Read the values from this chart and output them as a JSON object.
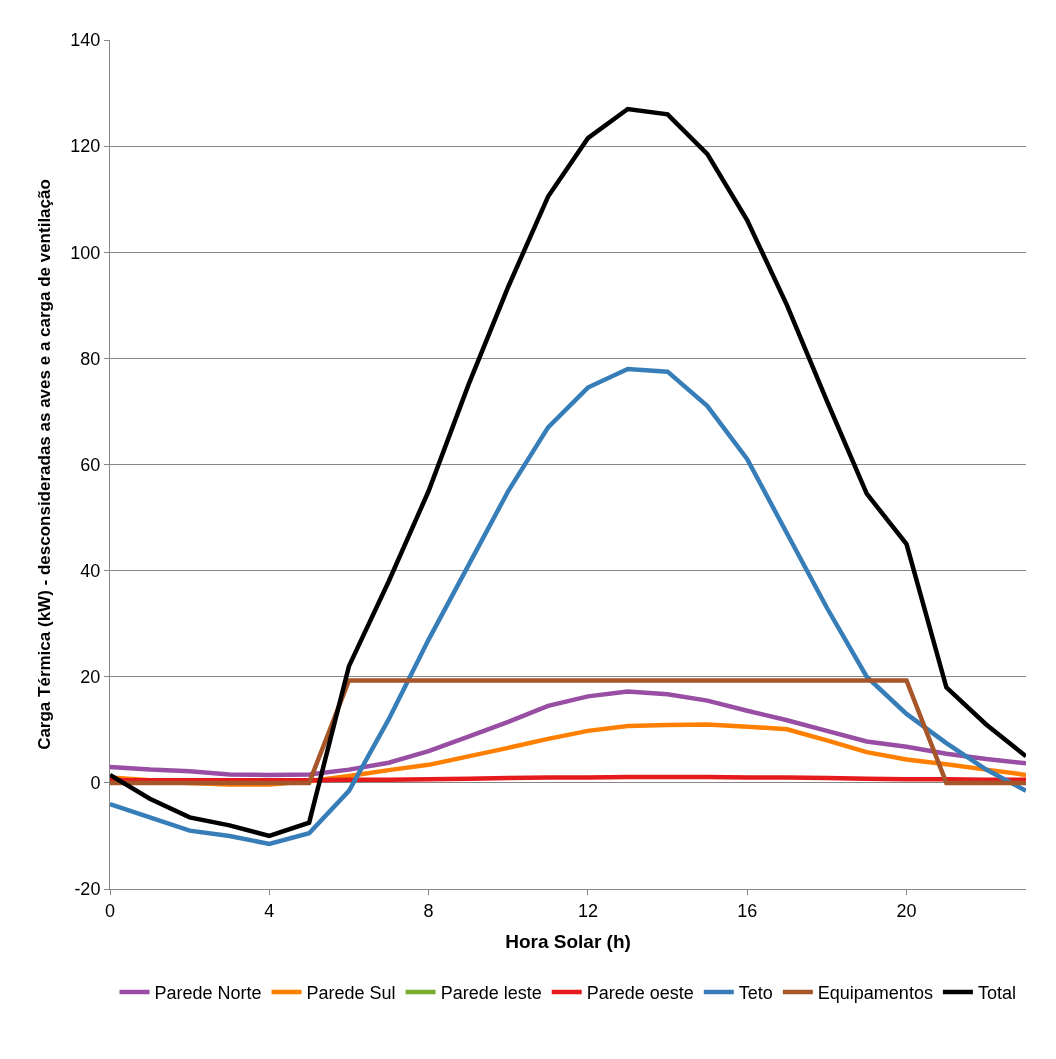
{
  "chart_data": {
    "type": "line",
    "xlabel": "Hora Solar (h)",
    "ylabel": "Carga Térmica (kW) - desconsideradas as aves e a carga de ventilação",
    "x": [
      0,
      1,
      2,
      3,
      4,
      5,
      6,
      7,
      8,
      9,
      10,
      11,
      12,
      13,
      14,
      15,
      16,
      17,
      18,
      19,
      20,
      21,
      22,
      23
    ],
    "xlim": [
      0,
      23
    ],
    "xticks": [
      0,
      4,
      8,
      12,
      16,
      20
    ],
    "ylim": [
      -20,
      140
    ],
    "yticks": [
      -20,
      0,
      20,
      40,
      60,
      80,
      100,
      120,
      140
    ],
    "grid": "y",
    "legend": "bottom",
    "marker": "none",
    "line_style": "solid",
    "series": [
      {
        "name": "Parede Norte",
        "color": "#984ea3",
        "values": [
          3,
          2.5,
          2.2,
          1.6,
          1.5,
          1.6,
          2.5,
          3.8,
          6,
          8.7,
          11.5,
          14.5,
          16.3,
          17.2,
          16.7,
          15.5,
          13.6,
          11.8,
          9.8,
          7.8,
          6.8,
          5.5,
          4.5,
          3.7
        ]
      },
      {
        "name": "Parede Sul",
        "color": "#ff7f00",
        "values": [
          1,
          0.5,
          0,
          -0.3,
          -0.3,
          0.3,
          1.3,
          2.4,
          3.4,
          5,
          6.6,
          8.3,
          9.8,
          10.7,
          10.9,
          11,
          10.6,
          10.1,
          8,
          5.8,
          4.4,
          3.5,
          2.5,
          1.5
        ]
      },
      {
        "name": "Parede leste",
        "color": "#77ac30",
        "values": [
          null,
          null,
          null,
          null,
          null,
          null,
          null,
          null,
          null,
          null,
          null,
          null,
          null,
          null,
          null,
          null,
          null,
          null,
          null,
          null,
          null,
          null,
          null,
          null
        ]
      },
      {
        "name": "Parede oeste",
        "color": "#e41a1c",
        "values": [
          0.5,
          0.5,
          0.5,
          0.5,
          0.5,
          0.5,
          0.6,
          0.6,
          0.7,
          0.8,
          0.9,
          1,
          1,
          1.1,
          1.1,
          1.1,
          1,
          1,
          0.9,
          0.8,
          0.7,
          0.7,
          0.6,
          0.6
        ]
      },
      {
        "name": "Teto",
        "color": "#377eb8",
        "values": [
          -4,
          -6.5,
          -9,
          -10,
          -11.5,
          -9.5,
          -1.5,
          12,
          27,
          41,
          55,
          67,
          74.5,
          78,
          77.5,
          71,
          61,
          47,
          33,
          20,
          13,
          7.5,
          2.5,
          -1.5
        ]
      },
      {
        "name": "Equipamentos",
        "color": "#a65628",
        "values": [
          0,
          0,
          0,
          0,
          0,
          0,
          19.3,
          19.3,
          19.3,
          19.3,
          19.3,
          19.3,
          19.3,
          19.3,
          19.3,
          19.3,
          19.3,
          19.3,
          19.3,
          19.3,
          19.3,
          0,
          0,
          0
        ]
      },
      {
        "name": "Total",
        "color": "#000000",
        "values": [
          1.5,
          -3,
          -6.5,
          -8,
          -10,
          -7.5,
          22,
          38,
          55,
          75,
          93.5,
          110.5,
          121.5,
          127,
          126,
          118.5,
          106,
          90,
          72,
          54.5,
          45,
          18,
          11,
          5
        ]
      }
    ]
  }
}
